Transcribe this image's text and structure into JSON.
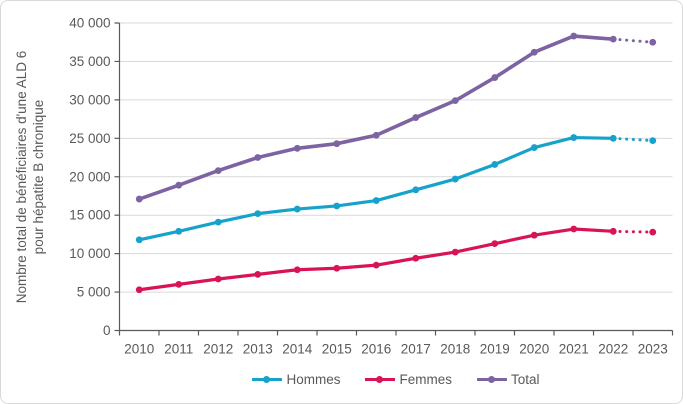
{
  "figure": {
    "y_axis_title_line1": "Nombre total de bénéficiaires d'une ALD 6",
    "y_axis_title_line2": "pour hépatite B chronique"
  },
  "chart_data": {
    "type": "line",
    "title": "",
    "xlabel": "",
    "ylabel": "Nombre total de bénéficiaires d'une ALD 6 pour hépatite B chronique",
    "x": [
      2010,
      2011,
      2012,
      2013,
      2014,
      2015,
      2016,
      2017,
      2018,
      2019,
      2020,
      2021,
      2022,
      2023
    ],
    "x_tick_labels": [
      "2010",
      "2011",
      "2012",
      "2013",
      "2014",
      "2015",
      "2016",
      "2017",
      "2018",
      "2019",
      "2020",
      "2021",
      "2022",
      "2023"
    ],
    "series": [
      {
        "name": "Hommes",
        "color": "#17a2cc",
        "line_width": 3.2,
        "dotted_from_index": 12,
        "values": [
          11800,
          12900,
          14100,
          15200,
          15800,
          16200,
          16900,
          18300,
          19700,
          21600,
          23800,
          25100,
          25000,
          24700
        ]
      },
      {
        "name": "Femmes",
        "color": "#d91358",
        "line_width": 3.2,
        "dotted_from_index": 12,
        "values": [
          5300,
          6000,
          6700,
          7300,
          7900,
          8100,
          8500,
          9400,
          10200,
          11300,
          12400,
          13200,
          12900,
          12800
        ]
      },
      {
        "name": "Total",
        "color": "#7e63a3",
        "line_width": 3.6,
        "dotted_from_index": 12,
        "values": [
          17100,
          18900,
          20800,
          22500,
          23700,
          24300,
          25400,
          27700,
          29900,
          32900,
          36200,
          38300,
          37900,
          37500
        ]
      }
    ],
    "ylim": [
      0,
      40000
    ],
    "ytick_step": 5000,
    "ytick_labels": [
      "0",
      "5 000",
      "10 000",
      "15 000",
      "20 000",
      "25 000",
      "30 000",
      "35 000",
      "40 000"
    ],
    "grid": true,
    "legend_position": "bottom",
    "note": "Segment 2022-2023 en pointillés pour chaque série"
  },
  "colors": {
    "grid": "#d9d9d9",
    "axis": "#595959",
    "tick_text": "#595959",
    "border": "#d9d9d9",
    "background": "#ffffff"
  }
}
